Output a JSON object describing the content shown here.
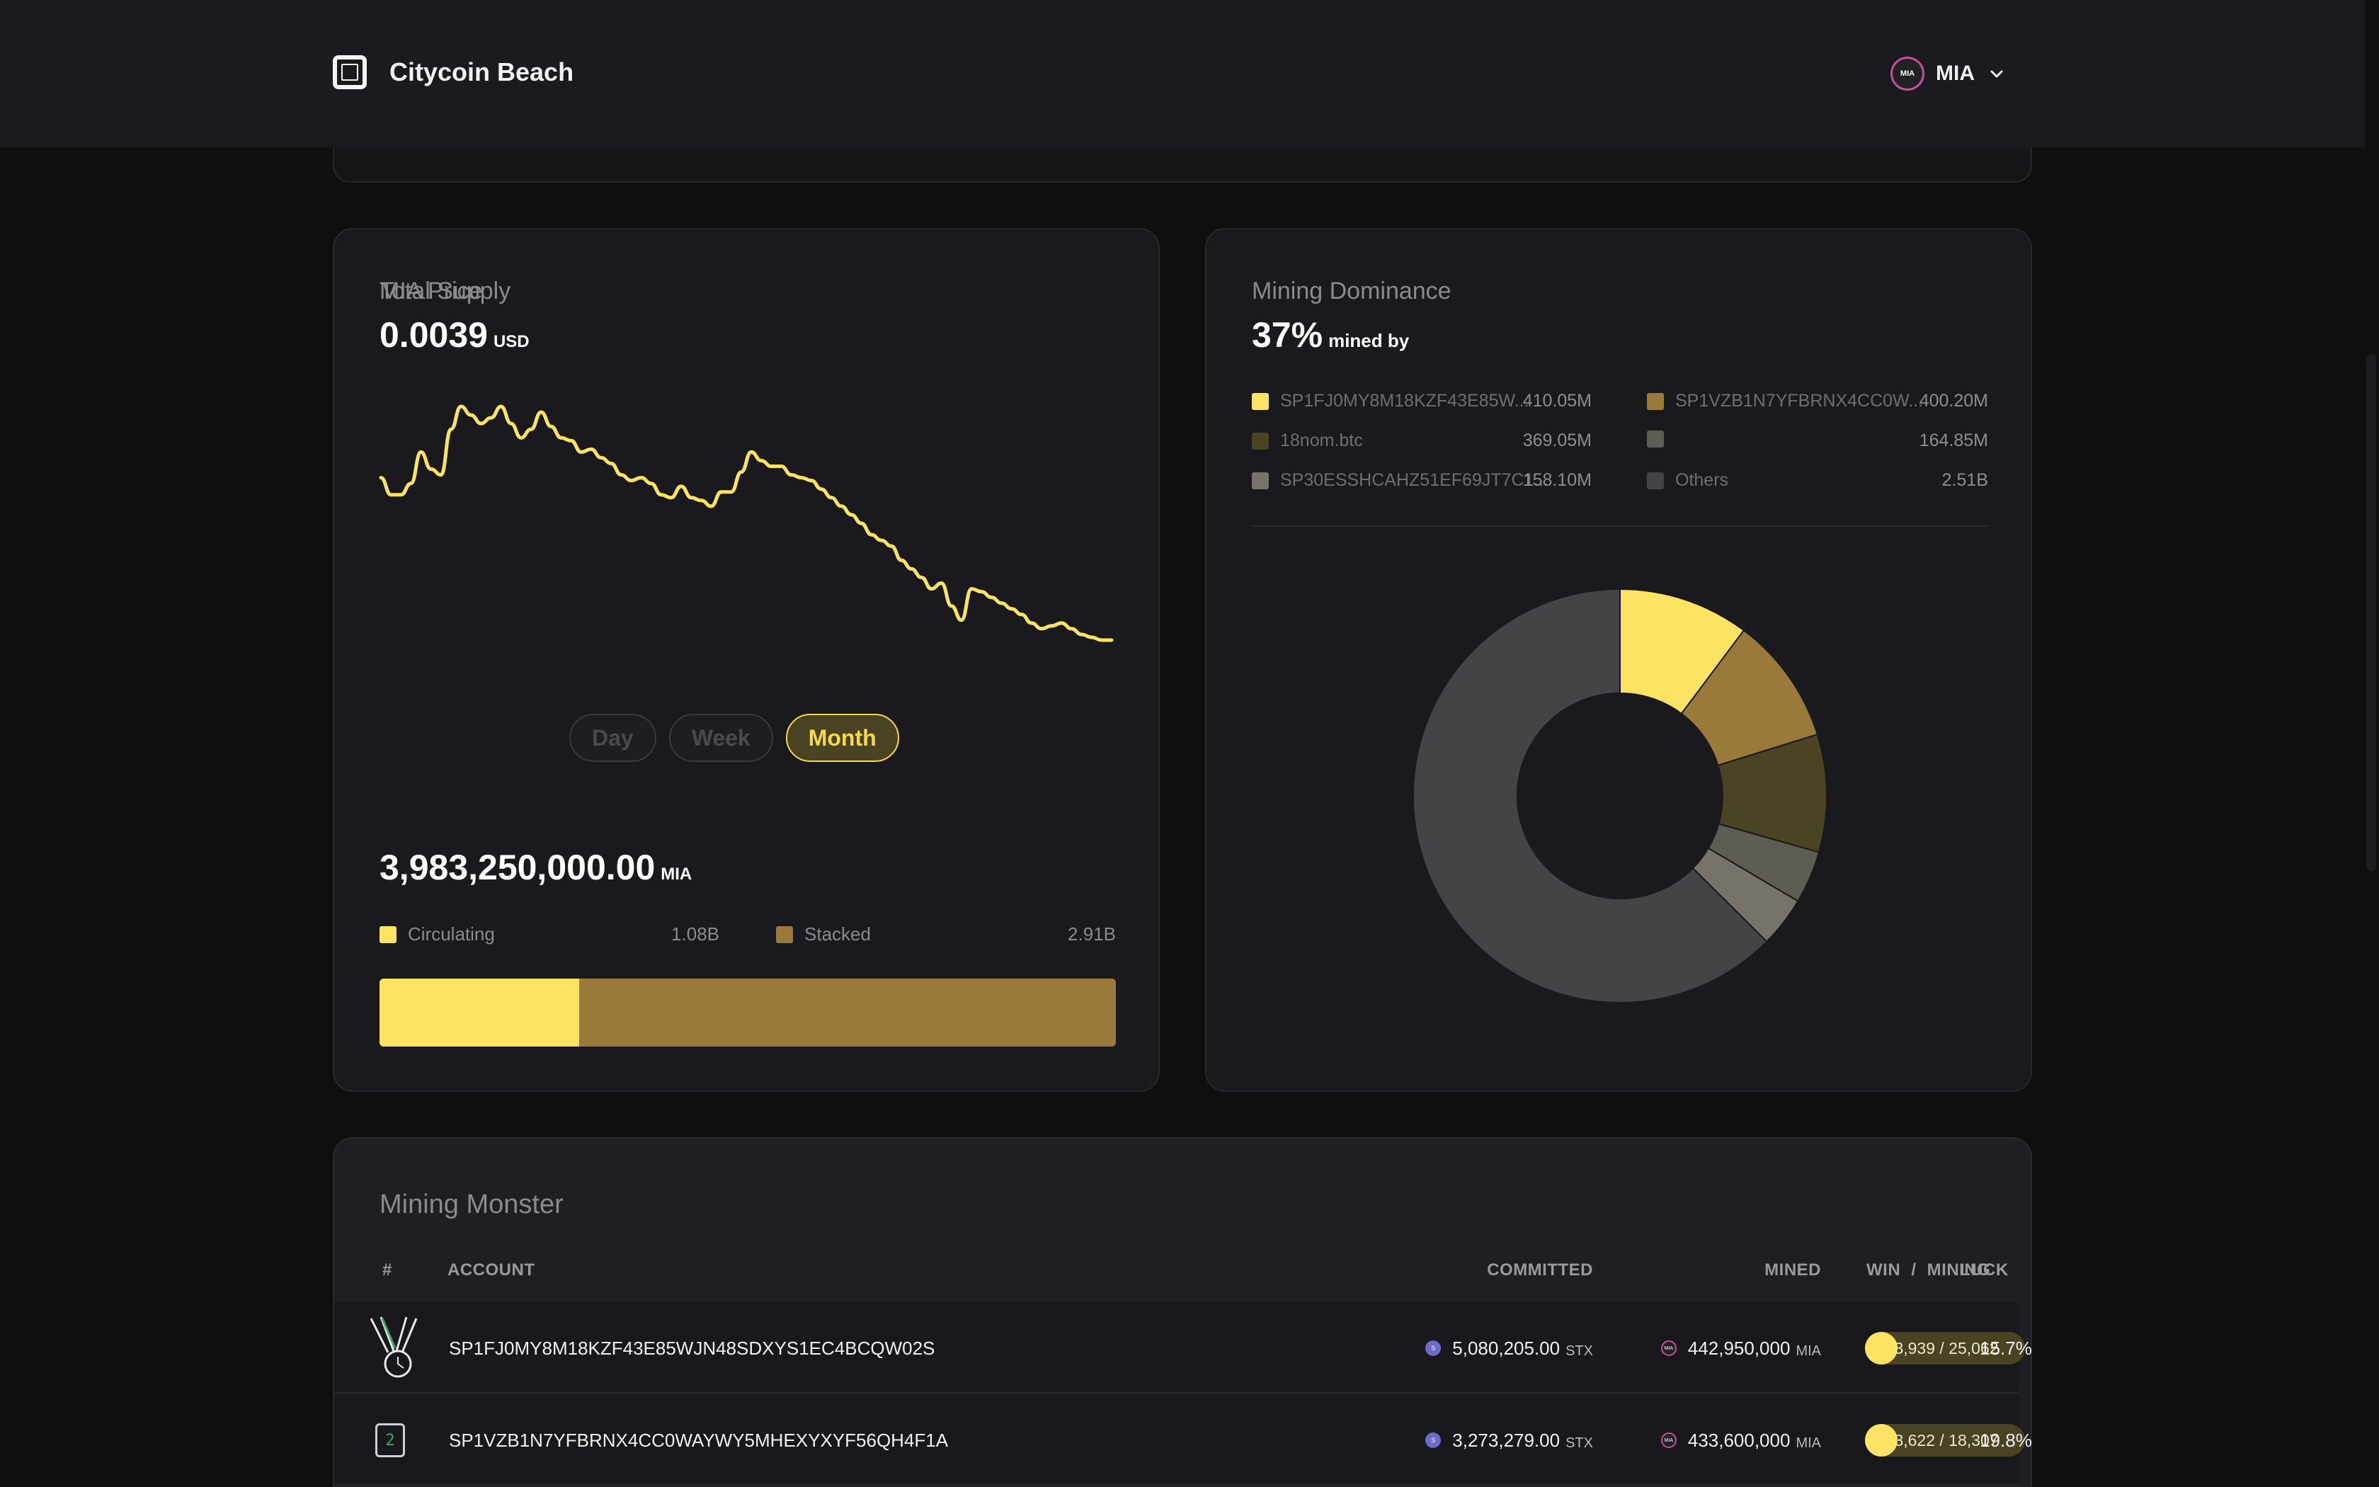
{
  "header": {
    "brand": "Citycoin Beach",
    "city_badge": "MIA",
    "city": "MIA"
  },
  "price_card": {
    "label": "MIA Price",
    "price": "0.0039",
    "price_unit": "USD",
    "ranges": [
      "Day",
      "Week",
      "Month"
    ],
    "active_range": "Month",
    "series_values": [
      57,
      51,
      51,
      55,
      66,
      60,
      58,
      74,
      82,
      79,
      76,
      78,
      82,
      76,
      71,
      74,
      80,
      75,
      71,
      70,
      66,
      67,
      64,
      62,
      58,
      56,
      57,
      55,
      51,
      50,
      54,
      50,
      49,
      47,
      52,
      52,
      59,
      66,
      63,
      61,
      61,
      58,
      57,
      56,
      53,
      50,
      47,
      44,
      41,
      37,
      35,
      33,
      28,
      25,
      22,
      18,
      20,
      12,
      7,
      18,
      17,
      15,
      13,
      11,
      9,
      6,
      4,
      5,
      6,
      4,
      2,
      1,
      0,
      0
    ],
    "total_supply_label": "Total Supply",
    "total_supply": "3,983,250,000.00",
    "total_supply_unit": "MIA",
    "circulating_label": "Circulating",
    "circulating_value": "1.08B",
    "circulating_amount": 1.08,
    "stacked_label": "Stacked",
    "stacked_value": "2.91B",
    "stacked_amount": 2.91
  },
  "dominance_card": {
    "label": "Mining Dominance",
    "percent": "37%",
    "mined_by": "mined by",
    "miners": [
      {
        "name": "SP1FJ0MY8M18KZF43E85W...",
        "value": "410.05M",
        "amount": 410.05,
        "color": "#fde363"
      },
      {
        "name": "SP1VZB1N7YFBRNX4CC0W...",
        "value": "400.20M",
        "amount": 400.2,
        "color": "#9a7a3a"
      },
      {
        "name": "18nom.btc",
        "value": "369.05M",
        "amount": 369.05,
        "color": "#4b4424"
      },
      {
        "name": "",
        "value": "164.85M",
        "amount": 164.85,
        "color": "#5d5d54"
      },
      {
        "name": "SP30ESSHCAHZ51EF69JT7C1...",
        "value": "158.10M",
        "amount": 158.1,
        "color": "#77726a"
      },
      {
        "name": "Others",
        "value": "2.51B",
        "amount": 2510,
        "color": "#444446"
      }
    ]
  },
  "mining_monster": {
    "title": "Mining Monster",
    "columns": {
      "rank": "#",
      "account": "ACCOUNT",
      "committed": "COMMITTED",
      "mined": "MINED",
      "win": "WIN",
      "slash": "/",
      "mining": "MINING",
      "luck": "LUCK"
    },
    "rows": [
      {
        "account": "SP1FJ0MY8M18KZF43E85WJN48SDXYS1EC4BCQW02S",
        "committed": "5,080,205.00",
        "committed_unit": "STX",
        "mined": "442,950,000",
        "mined_unit": "MIA",
        "win_mining": "3,939 / 25,062",
        "luck": "15.7%"
      },
      {
        "rank": "2",
        "account": "SP1VZB1N7YFBRNX4CC0WAYWY5MHEXYXYF56QH4F1A",
        "committed": "3,273,279.00",
        "committed_unit": "STX",
        "mined": "433,600,000",
        "mined_unit": "MIA",
        "win_mining": "3,622 / 18,307",
        "luck": "19.8%"
      }
    ]
  }
}
